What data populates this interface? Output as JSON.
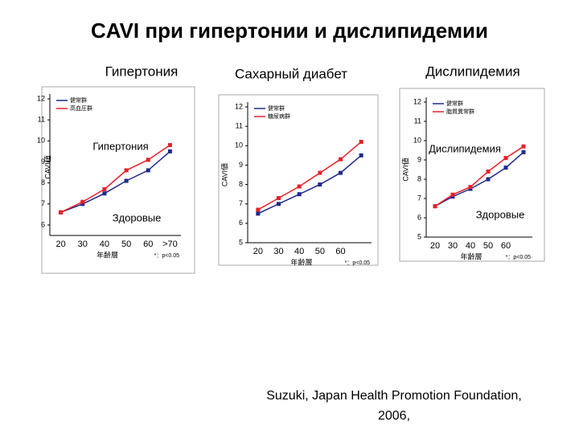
{
  "title": "CAVI при гипертонии и дислипидемии",
  "citation": [
    "Suzuki, Japan Health Promotion Foundation,",
    "2006,"
  ],
  "chart_data": [
    {
      "type": "line",
      "heading": "Гипертония",
      "x_label": "年齢層",
      "y_label": "CAVI値",
      "note": "*：p<0.05",
      "overlay_labels": [
        "Гипертония",
        "Здоровые"
      ],
      "categories": [
        "20",
        "30",
        "40",
        "50",
        "60",
        ">70"
      ],
      "ylim": [
        5.5,
        12
      ],
      "yticks": [
        6,
        7,
        8,
        9,
        10,
        11,
        12
      ],
      "series": [
        {
          "name": "健常群",
          "color": "#1f2a8c",
          "values": [
            6.6,
            7.0,
            7.5,
            8.1,
            8.6,
            9.5
          ]
        },
        {
          "name": "高血圧群",
          "color": "#e8202a",
          "values": [
            6.6,
            7.1,
            7.7,
            8.6,
            9.1,
            9.8
          ]
        }
      ]
    },
    {
      "type": "line",
      "heading": "Сахарный диабет",
      "x_label": "年齢層",
      "y_label": "CAVI値",
      "note": "*：p<0.05",
      "overlay_labels": [],
      "categories": [
        "20",
        "30",
        "40",
        "50",
        "60",
        null
      ],
      "ylim": [
        5,
        12
      ],
      "yticks": [
        5,
        6,
        7,
        8,
        9,
        10,
        11,
        12
      ],
      "series": [
        {
          "name": "健常群",
          "color": "#1f2a8c",
          "values": [
            6.5,
            7.0,
            7.5,
            8.0,
            8.6,
            9.5
          ]
        },
        {
          "name": "糖尿病群",
          "color": "#e8202a",
          "values": [
            6.7,
            7.3,
            7.9,
            8.6,
            9.3,
            10.2
          ]
        }
      ]
    },
    {
      "type": "line",
      "heading": "Дислипидемия",
      "x_label": "年齢層",
      "y_label": "CAVI値",
      "note": "*：p<0.05",
      "overlay_labels": [
        "Дислипидемия",
        "Здоровые"
      ],
      "categories": [
        "20",
        "30",
        "40",
        "50",
        "60",
        null
      ],
      "ylim": [
        5,
        12
      ],
      "yticks": [
        5,
        6,
        7,
        8,
        9,
        10,
        11,
        12
      ],
      "series": [
        {
          "name": "健常群",
          "color": "#1f2a8c",
          "values": [
            6.6,
            7.1,
            7.5,
            8.0,
            8.6,
            9.4
          ]
        },
        {
          "name": "脂質異常群",
          "color": "#e8202a",
          "values": [
            6.6,
            7.2,
            7.6,
            8.4,
            9.1,
            9.7
          ]
        }
      ]
    }
  ]
}
